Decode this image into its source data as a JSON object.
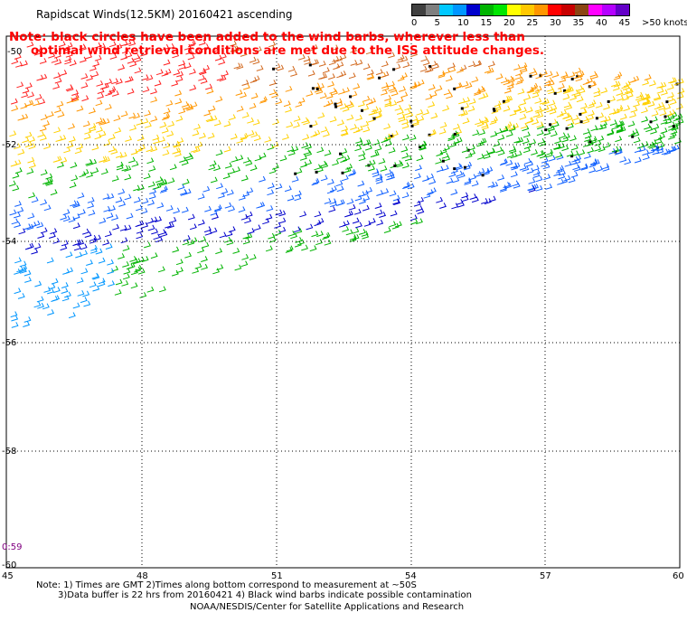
{
  "title": "Rapidscat Winds(12.5KM) 20160421 ascending",
  "note_red": {
    "line1": "Note: black circles have been added to the wind barbs, wherever less than",
    "line2": "optimal wind retrieval conditions are met due to the ISS attitude changes."
  },
  "scale": {
    "colors": [
      "#404040",
      "#7f7f7f",
      "#00c8ff",
      "#0096ff",
      "#0000cd",
      "#00b400",
      "#00e600",
      "#ffff00",
      "#ffc800",
      "#ff9600",
      "#ff0000",
      "#c80000",
      "#8b4513",
      "#ff00ff",
      "#b400ff",
      "#6400c8"
    ],
    "labels": [
      "0",
      "5",
      "10",
      "15",
      "20",
      "25",
      "30",
      "35",
      "40",
      "45",
      ">50 knots"
    ]
  },
  "axes": {
    "x_ticks": [
      "45",
      "48",
      "51",
      "54",
      "57",
      "60"
    ],
    "y_ticks": [
      "-52",
      "-54",
      "-56",
      "-58",
      "-60"
    ],
    "y_top_partial": "-50"
  },
  "time_label": "0:59",
  "footer": {
    "line1": "Note: 1) Times are GMT 2)Times along bottom correspond to measurement at ~50S",
    "line2": "3)Data buffer is 22 hrs from 20160421 4) Black wind barbs indicate possible contamination",
    "line3": "NOAA/NESDIS/Center for Satellite Applications and Research"
  }
}
